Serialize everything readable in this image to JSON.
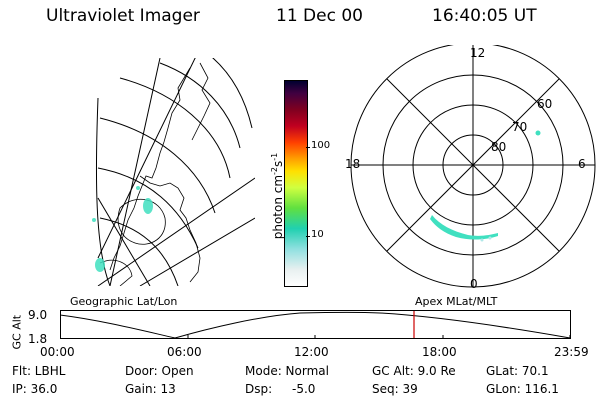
{
  "header": {
    "title": "Ultraviolet Imager",
    "date": "11 Dec 00",
    "time": "16:40:05 UT"
  },
  "colorbar": {
    "unit_label": "photon cm",
    "unit_exp1": "-2",
    "unit_mid": "s",
    "unit_exp2": "-1",
    "tick_100": "100",
    "tick_10": "10"
  },
  "polar": {
    "mlt_12": "12",
    "mlt_18": "18",
    "mlt_6": "6",
    "mlt_0": "0",
    "lat_60": "60",
    "lat_70": "70",
    "lat_80": "80"
  },
  "timeline": {
    "ylabel_gc": "GC",
    "ylabel_alt": "Alt",
    "ytick_top": "9.0",
    "ytick_bot": "1.8",
    "left_caption": "Geographic Lat/Lon",
    "right_caption": "Apex MLat/MLT",
    "ticks": [
      "00:00",
      "06:00",
      "12:00",
      "18:00",
      "23:59"
    ],
    "current_marker_color": "#cc0000"
  },
  "footer": {
    "flt": "Flt: LBHL",
    "ip": "IP: 36.0",
    "door": "Door: Open",
    "gain": "Gain: 13",
    "mode": "Mode: Normal",
    "dsp_label": "Dsp:",
    "dsp_value": "-5.0",
    "gc_alt": "GC Alt: 9.0 Re",
    "seq": "Seq: 39",
    "glat": "GLat:  70.1",
    "glon": "GLon: 116.1"
  }
}
